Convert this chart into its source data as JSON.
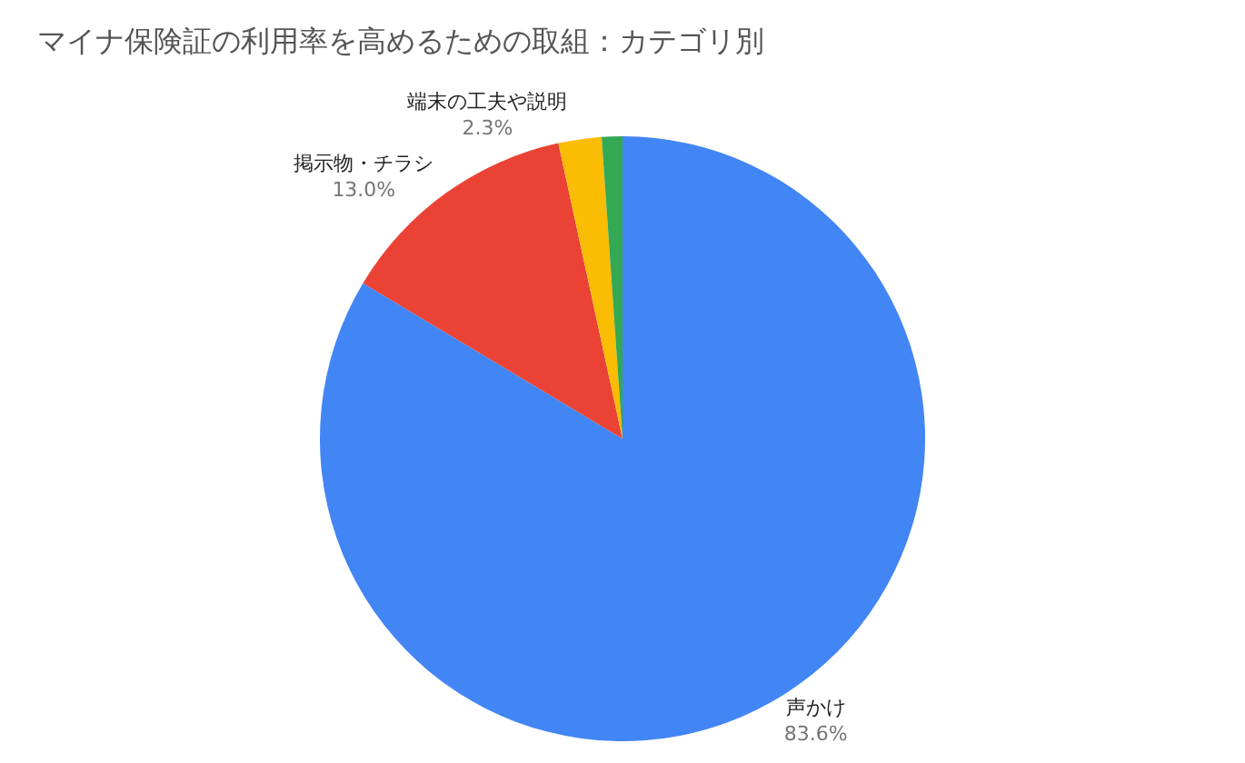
{
  "chart_data": {
    "type": "pie",
    "title": "マイナ保険証の利用率を高めるための取組：カテゴリ別",
    "categories": [
      "声かけ",
      "掲示物・チラシ",
      "端末の工夫や説明",
      null
    ],
    "values": [
      83.6,
      13.0,
      2.3,
      1.1
    ],
    "value_labels": [
      "83.6%",
      "13.0%",
      "2.3%",
      null
    ],
    "colors": [
      "#4285f4",
      "#ea4335",
      "#fbbc04",
      "#34a853"
    ]
  }
}
